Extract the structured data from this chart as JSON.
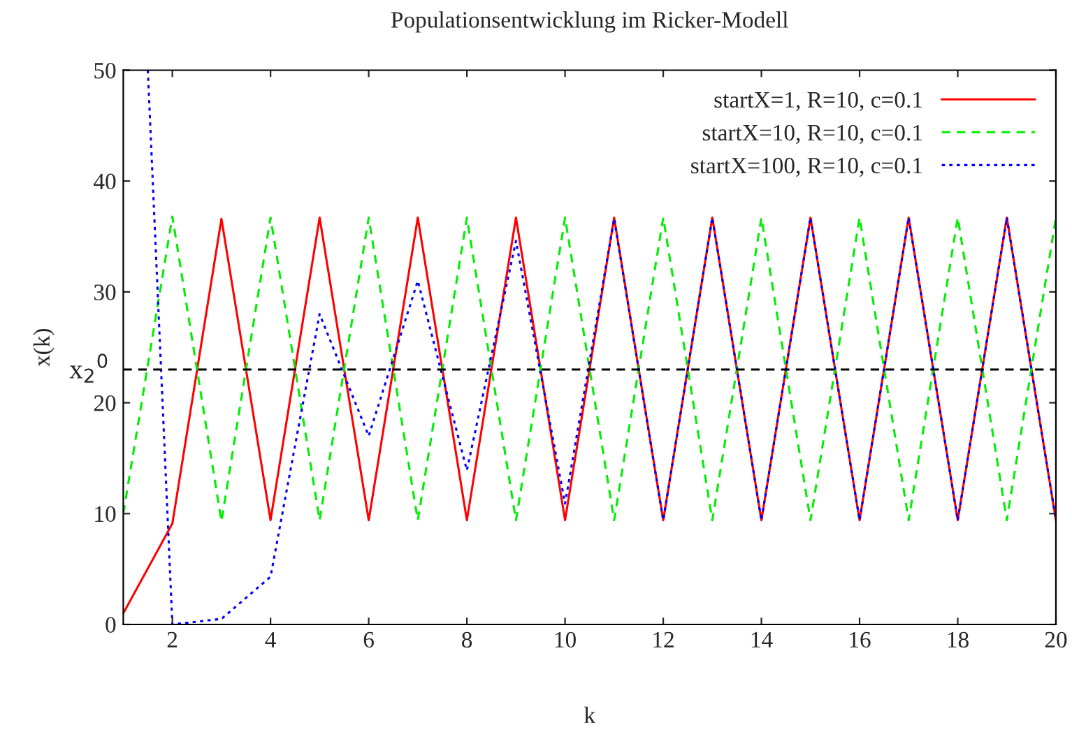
{
  "chart_data": {
    "type": "line",
    "title": "Populationsentwicklung im Ricker-Modell",
    "xlabel": "k",
    "ylabel": "x(k)",
    "x": [
      1,
      2,
      3,
      4,
      5,
      6,
      7,
      8,
      9,
      10,
      11,
      12,
      13,
      14,
      15,
      16,
      17,
      18,
      19,
      20
    ],
    "series": [
      {
        "name": "startX=1, R=10, c=0.1",
        "color": "#ff0000",
        "line_style": "solid",
        "values": [
          1,
          9.1,
          36.6,
          9.4,
          36.7,
          9.4,
          36.7,
          9.4,
          36.7,
          9.4,
          36.7,
          9.4,
          36.7,
          9.4,
          36.7,
          9.4,
          36.7,
          9.4,
          36.7,
          9.4
        ]
      },
      {
        "name": "startX=10, R=10, c=0.1",
        "color": "#00ee00",
        "line_style": "dashed",
        "values": [
          10,
          36.8,
          9.3,
          36.7,
          9.4,
          36.7,
          9.4,
          36.7,
          9.4,
          36.7,
          9.4,
          36.7,
          9.4,
          36.7,
          9.4,
          36.7,
          9.4,
          36.7,
          9.4,
          36.7
        ]
      },
      {
        "name": "startX=100, R=10, c=0.1",
        "color": "#0000ff",
        "line_style": "dotted",
        "x": [
          1.5,
          2,
          3,
          4,
          5,
          6,
          7,
          8,
          9,
          10,
          11,
          12,
          13,
          14,
          15,
          16,
          17,
          18,
          19,
          20
        ],
        "values": [
          50,
          0,
          0.5,
          4.3,
          28,
          17,
          31,
          13.9,
          34.6,
          10.9,
          36.6,
          9.4,
          36.7,
          9.4,
          36.7,
          9.4,
          36.7,
          9.4,
          36.7,
          9.4
        ]
      }
    ],
    "ref_lines": [
      {
        "axis": "y",
        "value": 23,
        "label": "x$_{2}$$^{0}$",
        "color": "#000000",
        "line_style": "dashed"
      }
    ],
    "xlim": [
      1,
      20
    ],
    "xticks": [
      2,
      4,
      6,
      8,
      10,
      12,
      14,
      16,
      18,
      20
    ],
    "ylim": [
      0,
      50
    ],
    "yticks": [
      0,
      10,
      20,
      30,
      40,
      50
    ],
    "grid": false,
    "legend": "top right",
    "marker": "none"
  }
}
